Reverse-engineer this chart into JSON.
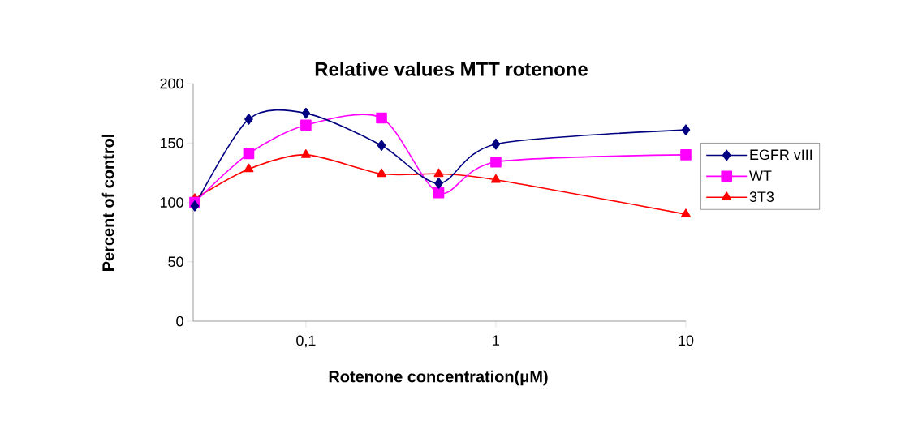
{
  "chart_data": {
    "type": "line",
    "title": "Relative values MTT rotenone",
    "xlabel": "Rotenone concentration(μM)",
    "ylabel": "Percent of control",
    "x": [
      0.026,
      0.05,
      0.1,
      0.25,
      0.5,
      1,
      10
    ],
    "series": [
      {
        "name": "EGFR vIII",
        "color": "#000080",
        "marker": "diamond",
        "values": [
          97,
          170,
          175,
          148,
          116,
          149,
          161
        ]
      },
      {
        "name": "WT",
        "color": "#ff00ff",
        "marker": "square",
        "values": [
          100,
          141,
          165,
          171,
          108,
          134,
          140
        ]
      },
      {
        "name": "3T3",
        "color": "#ff0000",
        "marker": "triangle",
        "values": [
          103,
          128,
          140,
          124,
          124,
          119,
          90
        ]
      }
    ],
    "log": "x",
    "xlim": [
      0.0255,
      10
    ],
    "xticks": [
      {
        "value": 0.1,
        "label": "0,1"
      },
      1,
      10
    ],
    "ylim": [
      0,
      200
    ],
    "yticks": [
      0,
      50,
      100,
      150,
      200
    ],
    "grid": false,
    "legend": "right"
  }
}
